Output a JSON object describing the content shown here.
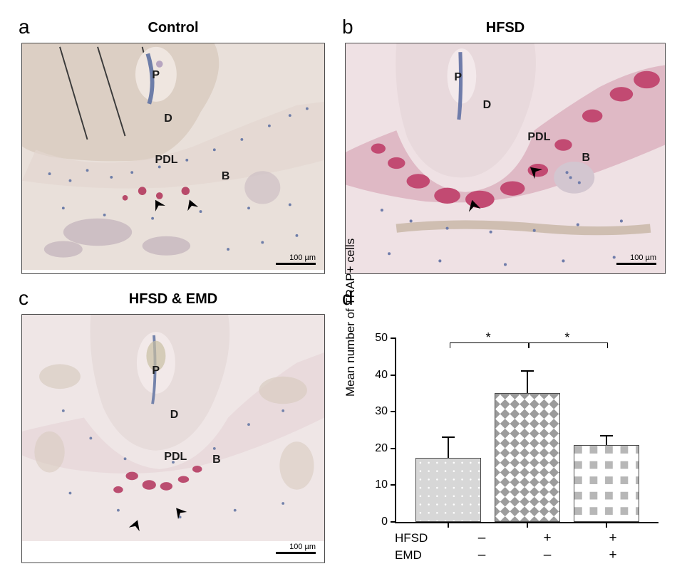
{
  "panels": {
    "a": {
      "label": "a",
      "title": "Control"
    },
    "b": {
      "label": "b",
      "title": "HFSD"
    },
    "c": {
      "label": "c",
      "title": "HFSD & EMD"
    },
    "d": {
      "label": "d",
      "title": ""
    }
  },
  "micrograph_annotations": {
    "P": "P",
    "D": "D",
    "PDL": "PDL",
    "B": "B"
  },
  "micrograph_colors": {
    "a_bg": "#e9e0da",
    "a_tooth": "#dccfc4",
    "a_pulp": "#b7a5c0",
    "a_bone": "#e3d9d2",
    "a_trap": "#b84a6a",
    "a_nuclei": "#6d7da8",
    "b_bg": "#efe1e4",
    "b_tooth": "#e8d9dc",
    "b_trap": "#c24a72",
    "b_nuclei": "#6f7caa",
    "c_bg": "#efe6e6",
    "c_tooth": "#e7dcdb",
    "c_trap": "#bb4d70",
    "c_nuclei": "#7483ab"
  },
  "scalebar": {
    "label": "100 µm"
  },
  "chart": {
    "type": "bar",
    "ylabel": "Mean number of TRAP+ cells",
    "ylim": [
      0,
      50
    ],
    "ytick_step": 10,
    "yticks": [
      0,
      10,
      20,
      30,
      40,
      50
    ],
    "bars": [
      {
        "group": "control",
        "value": 17.5,
        "error": 5.5,
        "pattern": "dots",
        "fill": "#d7d7d7",
        "dot_color": "#ffffff",
        "border": "#4a4a4a"
      },
      {
        "group": "hfsd",
        "value": 35.0,
        "error": 6.0,
        "pattern": "diamonds",
        "fill": "#ffffff",
        "diamond_color": "#9c9c9c",
        "border": "#4a4a4a"
      },
      {
        "group": "hfsd_emd",
        "value": 21.0,
        "error": 2.5,
        "pattern": "checker",
        "fill": "#ffffff",
        "checker_color": "#b7b7b7",
        "border": "#4a4a4a"
      }
    ],
    "conditions": {
      "rows": [
        {
          "label": "HFSD",
          "values": [
            "–",
            "+",
            "+"
          ]
        },
        {
          "label": "EMD",
          "values": [
            "–",
            "–",
            "+"
          ]
        }
      ]
    },
    "significance": [
      {
        "between": [
          "control",
          "hfsd"
        ],
        "label": "*"
      },
      {
        "between": [
          "hfsd",
          "hfsd_emd"
        ],
        "label": "*"
      }
    ],
    "axis_color": "#000000",
    "label_fontsize": 17,
    "tick_fontsize": 16
  }
}
